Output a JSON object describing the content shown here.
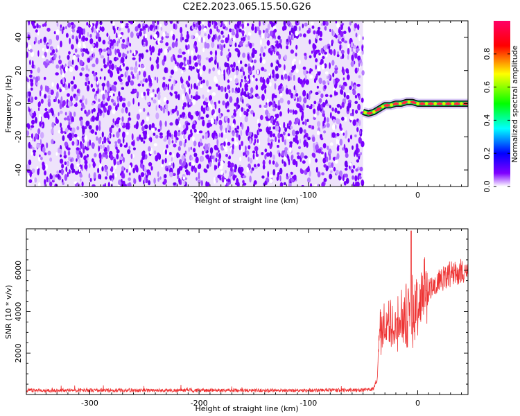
{
  "title": "C2E2.2023.065.15.50.G26",
  "chart_data": [
    {
      "type": "heatmap",
      "xlabel": "Height of straight line (km)",
      "ylabel": "Frequency (Hz)",
      "xlim": [
        -358,
        46
      ],
      "ylim": [
        -50,
        50
      ],
      "xticks": [
        -300,
        -200,
        -100,
        0
      ],
      "yticks": [
        -40,
        -20,
        0,
        20,
        40
      ],
      "noise_region_x": [
        -358,
        -50
      ],
      "signal_track": {
        "x": [
          -50,
          -45,
          -40,
          -35,
          -30,
          -25,
          -20,
          -15,
          -10,
          -5,
          0,
          10,
          20,
          30,
          46
        ],
        "y": [
          -5,
          -6,
          -5,
          -3,
          -1,
          -1,
          0,
          0,
          1,
          1,
          0,
          0,
          0,
          0,
          0
        ]
      },
      "colorbar": {
        "label": "Normalized spectral amplitude",
        "ticks": [
          "0.0",
          "0.2",
          "0.4",
          "0.6",
          "0.8"
        ],
        "range": [
          0,
          1
        ],
        "colors": [
          "#d0d0d0",
          "#8000ff",
          "#0000ff",
          "#00ffff",
          "#00ff00",
          "#ffff00",
          "#ff0000",
          "#ff0066"
        ]
      }
    },
    {
      "type": "line",
      "xlabel": "Height of straight line (km)",
      "ylabel": "SNR (10 * v/v)",
      "xlim": [
        -358,
        46
      ],
      "ylim": [
        0,
        8000
      ],
      "xticks": [
        -300,
        -200,
        -100,
        0
      ],
      "yticks": [
        2000,
        4000,
        6000
      ],
      "color": "#ee3333",
      "envelope": {
        "x": [
          -358,
          -300,
          -200,
          -100,
          -45,
          -40,
          -37,
          -35,
          -30,
          -25,
          -20,
          -15,
          -10,
          -5,
          0,
          5,
          10,
          15,
          20,
          25,
          30,
          35,
          40,
          46
        ],
        "y": [
          200,
          200,
          200,
          200,
          220,
          300,
          800,
          3000,
          3300,
          3200,
          3300,
          3500,
          3800,
          4000,
          4300,
          4700,
          5000,
          5300,
          5500,
          5700,
          5800,
          5900,
          5900,
          5800
        ]
      }
    }
  ]
}
